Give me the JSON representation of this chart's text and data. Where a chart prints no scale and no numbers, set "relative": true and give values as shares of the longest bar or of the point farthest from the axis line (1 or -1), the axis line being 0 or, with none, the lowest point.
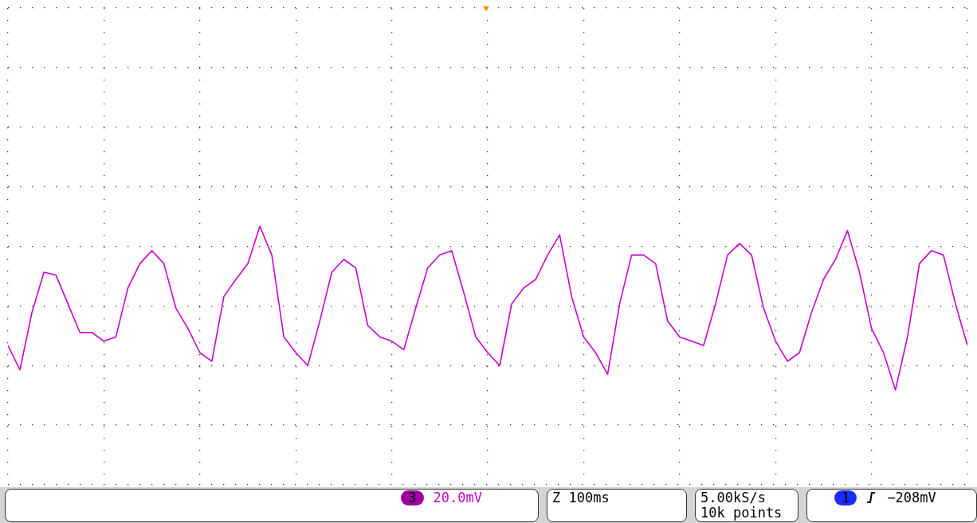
{
  "chart_data": {
    "type": "line",
    "relative": true,
    "grid": true,
    "legend": false,
    "marker": "none",
    "line_style": "solid",
    "categories": [
      null,
      null,
      null,
      null,
      null,
      null,
      null,
      null,
      null,
      null,
      null,
      null,
      null,
      null,
      null,
      null,
      null,
      null,
      null,
      null,
      null,
      null,
      null,
      null,
      null,
      null,
      null,
      null,
      null,
      null,
      null,
      null,
      null,
      null,
      null,
      null,
      null,
      null,
      null,
      null,
      null,
      null,
      null,
      null,
      null,
      null,
      null,
      null,
      null,
      null,
      null,
      null,
      null,
      null,
      null,
      null,
      null,
      null,
      null,
      null,
      null,
      null,
      null,
      null,
      null,
      null,
      null,
      null,
      null,
      null,
      null,
      null,
      null,
      null,
      null,
      null,
      null,
      null,
      null,
      null,
      null
    ],
    "series": [
      {
        "color": "#cc00cc",
        "values": [
          -0.69,
          -0.86,
          -0.46,
          -0.18,
          -0.2,
          -0.4,
          -0.6,
          -0.6,
          -0.66,
          -0.63,
          -0.29,
          -0.12,
          -0.03,
          -0.12,
          -0.43,
          -0.57,
          -0.74,
          -0.8,
          -0.35,
          -0.23,
          -0.12,
          0.14,
          -0.06,
          -0.63,
          -0.74,
          -0.83,
          -0.52,
          -0.18,
          -0.09,
          -0.15,
          -0.55,
          -0.63,
          -0.66,
          -0.72,
          -0.43,
          -0.15,
          -0.06,
          -0.03,
          -0.32,
          -0.63,
          -0.74,
          -0.83,
          -0.4,
          -0.29,
          -0.23,
          -0.06,
          0.08,
          -0.35,
          -0.63,
          -0.74,
          -0.89,
          -0.4,
          -0.06,
          -0.06,
          -0.12,
          -0.52,
          -0.63,
          -0.66,
          -0.69,
          -0.4,
          -0.06,
          0.02,
          -0.06,
          -0.43,
          -0.66,
          -0.8,
          -0.74,
          -0.46,
          -0.23,
          -0.09,
          0.11,
          -0.18,
          -0.57,
          -0.74,
          -1,
          -0.63,
          -0.12,
          -0.03,
          -0.06,
          -0.4,
          -0.69
        ]
      }
    ],
    "annotations": [
      "3",
      "20.0mV",
      "Z 100ms",
      "5.00kS/s",
      "10k points",
      "1",
      "−208mV"
    ]
  }
}
